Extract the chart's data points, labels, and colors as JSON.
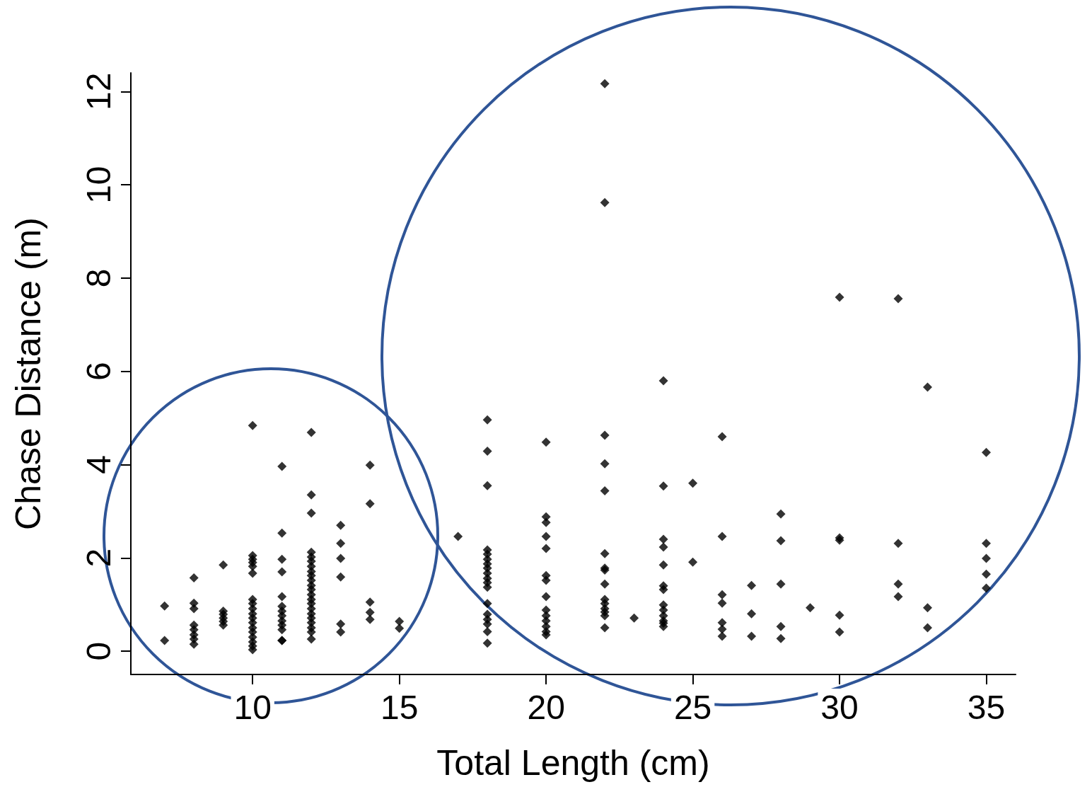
{
  "chart_data": {
    "type": "scatter",
    "xlabel": "Total Length (cm)",
    "ylabel": "Chase Distance (m)",
    "xlim": [
      5.85,
      36
    ],
    "ylim": [
      -0.5,
      12.4
    ],
    "xticks": [
      10,
      15,
      20,
      25,
      30,
      35
    ],
    "yticks": [
      0,
      2,
      4,
      6,
      8,
      10,
      12
    ],
    "grid": false,
    "marker": "diamond",
    "series": [
      {
        "color": "#000000",
        "x": [
          7,
          7,
          8,
          8,
          8,
          8,
          8,
          8,
          8,
          8,
          9,
          9,
          9,
          9,
          9,
          9,
          10,
          10,
          10,
          10,
          10,
          10,
          10,
          10,
          10,
          10,
          10,
          10,
          10,
          10,
          10,
          10,
          10,
          10,
          11,
          11,
          11,
          11,
          11,
          11,
          11,
          11,
          11,
          11,
          11,
          11,
          11,
          12,
          12,
          12,
          12,
          12,
          12,
          12,
          12,
          12,
          12,
          12,
          12,
          12,
          12,
          12,
          12,
          12,
          12,
          12,
          12,
          12,
          12,
          13,
          13,
          13,
          13,
          13,
          13,
          14,
          14,
          14,
          14,
          14,
          15,
          15,
          17,
          18,
          18,
          18,
          18,
          18,
          18,
          18,
          18,
          18,
          18,
          18,
          18,
          18,
          18,
          18,
          18,
          18,
          18,
          20,
          20,
          20,
          20,
          20,
          20,
          20,
          20,
          20,
          20,
          20,
          20,
          20,
          20,
          22,
          22,
          22,
          22,
          22,
          22,
          22,
          22,
          22,
          22,
          22,
          22,
          22,
          22,
          22,
          23,
          24,
          24,
          24,
          24,
          24,
          24,
          24,
          24,
          24,
          24,
          24,
          24,
          24,
          25,
          25,
          26,
          26,
          26,
          26,
          26,
          26,
          26,
          27,
          27,
          27,
          28,
          28,
          28,
          28,
          28,
          29,
          30,
          30,
          30,
          30,
          30,
          32,
          32,
          32,
          32,
          33,
          33,
          33,
          35,
          35,
          35,
          35,
          35
        ],
        "values": [
          0.97,
          0.23,
          1.57,
          1.03,
          0.91,
          0.56,
          0.46,
          0.35,
          0.26,
          0.15,
          1.85,
          0.86,
          0.79,
          0.71,
          0.64,
          0.56,
          4.84,
          2.05,
          1.97,
          1.9,
          1.82,
          1.67,
          1.11,
          1.02,
          0.91,
          0.8,
          0.71,
          0.61,
          0.5,
          0.41,
          0.3,
          0.2,
          0.11,
          0.03,
          3.96,
          2.53,
          1.97,
          1.7,
          1.17,
          0.96,
          0.86,
          0.76,
          0.65,
          0.56,
          0.46,
          0.23,
          0.23,
          4.69,
          3.35,
          2.96,
          2.12,
          2.02,
          1.93,
          1.82,
          1.71,
          1.62,
          1.52,
          1.41,
          1.32,
          1.21,
          1.11,
          1.02,
          0.91,
          0.8,
          0.71,
          0.61,
          0.5,
          0.41,
          0.26,
          2.7,
          2.31,
          1.99,
          1.59,
          0.58,
          0.41,
          3.99,
          3.16,
          1.05,
          0.83,
          0.68,
          0.64,
          0.49,
          2.46,
          4.96,
          4.29,
          3.55,
          2.17,
          2.08,
          1.97,
          1.87,
          1.78,
          1.67,
          1.56,
          1.47,
          1.37,
          1.02,
          0.79,
          0.68,
          0.58,
          0.42,
          0.17,
          4.48,
          2.88,
          2.76,
          2.46,
          2.2,
          1.62,
          1.52,
          1.17,
          0.88,
          0.76,
          0.65,
          0.53,
          0.42,
          0.35,
          12.17,
          9.62,
          4.63,
          4.02,
          3.44,
          2.09,
          1.78,
          1.74,
          1.44,
          1.11,
          1.02,
          0.91,
          0.84,
          0.76,
          0.5,
          0.71,
          5.8,
          3.54,
          2.4,
          2.23,
          1.85,
          1.4,
          1.32,
          0.99,
          0.88,
          0.76,
          0.65,
          0.53,
          0.6,
          3.6,
          1.91,
          4.6,
          2.46,
          1.21,
          1.03,
          0.61,
          0.47,
          0.32,
          1.41,
          0.8,
          0.32,
          2.94,
          2.37,
          1.44,
          0.53,
          0.27,
          0.93,
          7.59,
          2.43,
          2.38,
          0.77,
          0.41,
          7.56,
          2.31,
          1.44,
          1.17,
          5.66,
          0.93,
          0.5,
          4.26,
          2.31,
          1.99,
          1.65,
          1.35
        ]
      }
    ]
  }
}
